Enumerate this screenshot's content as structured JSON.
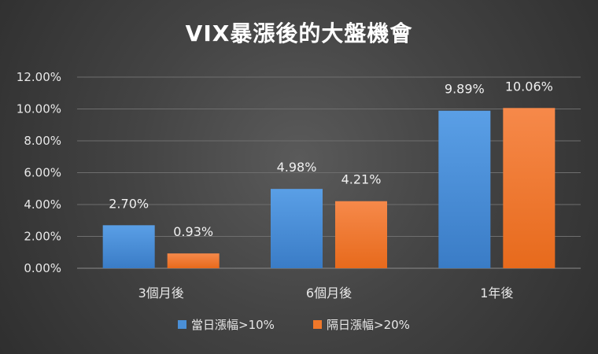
{
  "chart_data": {
    "type": "bar",
    "title": "VIX暴漲後的大盤機會",
    "categories": [
      "3個月後",
      "6個月後",
      "1年後"
    ],
    "series": [
      {
        "name": "當日漲幅>10%",
        "values": [
          2.7,
          4.98,
          9.89
        ],
        "labels": [
          "2.70%",
          "4.98%",
          "9.89%"
        ],
        "color": "#4a8fd6"
      },
      {
        "name": "隔日漲幅>20%",
        "values": [
          0.93,
          4.21,
          10.06
        ],
        "labels": [
          "0.93%",
          "4.21%",
          "10.06%"
        ],
        "color": "#f0782a"
      }
    ],
    "yticks": [
      "0.00%",
      "2.00%",
      "4.00%",
      "6.00%",
      "8.00%",
      "10.00%",
      "12.00%"
    ],
    "ylim": [
      0,
      12
    ],
    "grid": true,
    "legend_position": "bottom"
  }
}
